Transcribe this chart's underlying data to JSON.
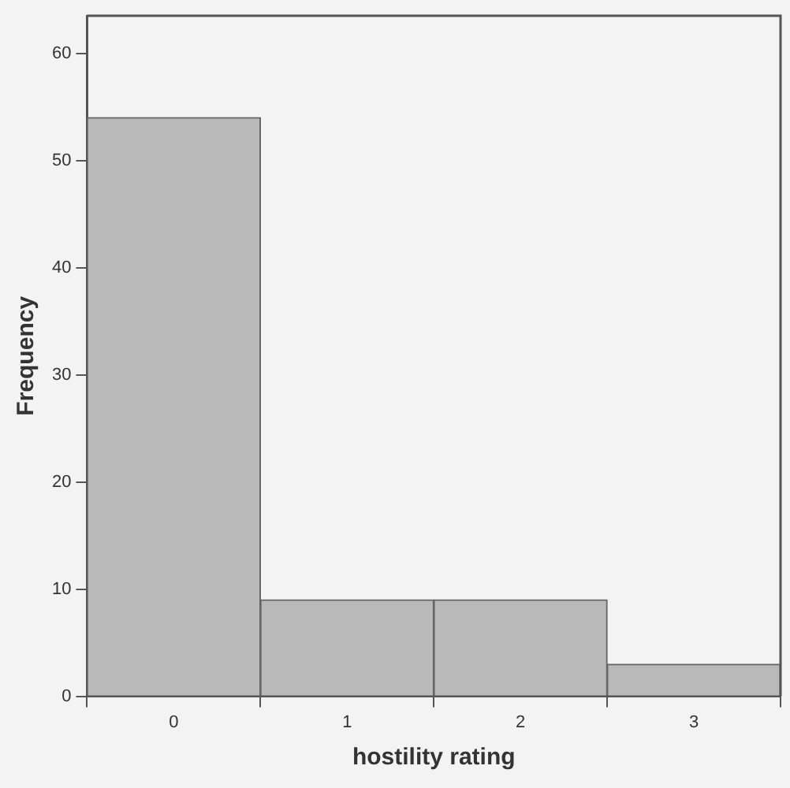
{
  "chart_data": {
    "type": "histogram",
    "xlabel": "hostility rating",
    "ylabel": "Frequency",
    "bins": [
      -0.5,
      0.5,
      1.5,
      2.5,
      3.5
    ],
    "values": [
      54,
      9,
      9,
      3
    ],
    "color": "#b9b9b9",
    "xlim": [
      -0.5,
      3.5
    ],
    "xticks": [
      0,
      1,
      2,
      3
    ],
    "ylim": [
      0,
      63.5
    ],
    "yticks": [
      0,
      10,
      20,
      30,
      40,
      50,
      60
    ]
  }
}
